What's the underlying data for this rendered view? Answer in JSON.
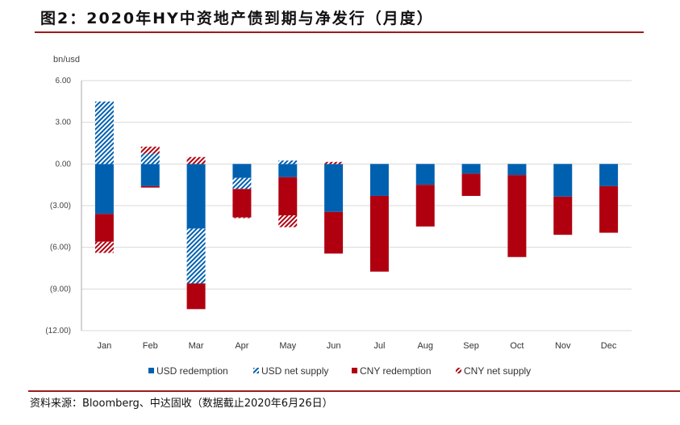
{
  "title": "图2：2020年HY中资地产债到期与净发行（月度）",
  "source": "资料来源：Bloomberg、中达固收（数据截止2020年6月26日）",
  "colors": {
    "usd": "#0060b0",
    "cny": "#b00010",
    "accent": "#9b1c1c",
    "grid": "#d9d9d9"
  },
  "chart_data": {
    "type": "bar",
    "stacked": true,
    "ylabel": "bn/usd",
    "ylim": [
      -12,
      6
    ],
    "yticks": [
      6,
      3,
      0,
      -3,
      -6,
      -9,
      -12
    ],
    "ytick_labels": [
      "6.00",
      "3.00",
      "0.00",
      "(3.00)",
      "(6.00)",
      "(9.00)",
      "(12.00)"
    ],
    "grid": true,
    "legend": "bottom",
    "categories": [
      "Jan",
      "Feb",
      "Mar",
      "Apr",
      "May",
      "Jun",
      "Jul",
      "Aug",
      "Sep",
      "Oct",
      "Nov",
      "Dec"
    ],
    "series": [
      {
        "name": "USD redemption",
        "color": "usd",
        "hatched": false,
        "values": [
          -3.6,
          -1.6,
          -4.65,
          -1.0,
          -0.95,
          -3.45,
          -2.3,
          -1.5,
          -0.7,
          -0.8,
          -2.35,
          -1.6
        ]
      },
      {
        "name": "USD net supply",
        "color": "usd",
        "hatched": true,
        "values": [
          4.5,
          0.75,
          -3.95,
          -0.8,
          0.25,
          0,
          0,
          0,
          0,
          0,
          0,
          0
        ]
      },
      {
        "name": "CNY redemption",
        "color": "cny",
        "hatched": false,
        "values": [
          -2.0,
          -0.1,
          -1.85,
          -2.05,
          -2.75,
          -3.0,
          -5.45,
          -3.0,
          -1.6,
          -5.9,
          -2.75,
          -3.35
        ]
      },
      {
        "name": "CNY net supply",
        "color": "cny",
        "hatched": true,
        "values": [
          -0.8,
          0.5,
          0.5,
          -0.05,
          -0.85,
          0.15,
          0,
          0,
          0,
          0,
          0,
          0
        ]
      }
    ]
  }
}
